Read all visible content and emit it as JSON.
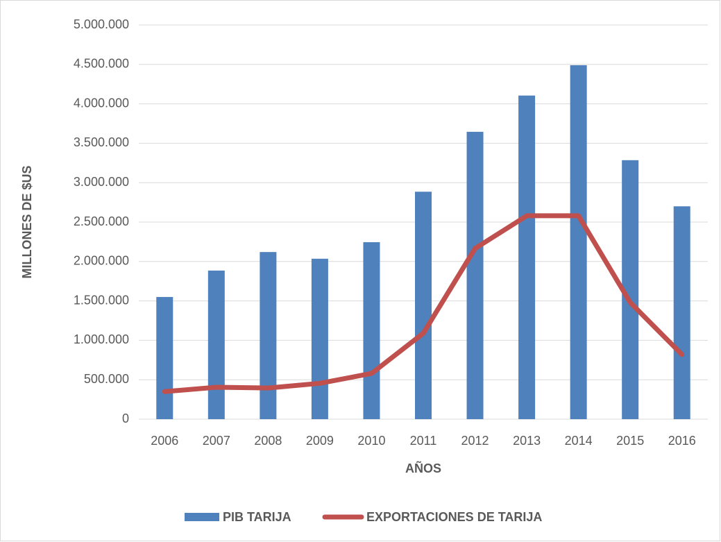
{
  "chart_data": {
    "type": "bar_line",
    "y_label": "MILLONES DE $US",
    "x_label": "AÑOS",
    "categories": [
      "2006",
      "2007",
      "2008",
      "2009",
      "2010",
      "2011",
      "2012",
      "2013",
      "2014",
      "2015",
      "2016"
    ],
    "series": [
      {
        "name": "PIB TARIJA",
        "type": "bar",
        "color": "#4f81bd",
        "values": [
          1550000,
          1885000,
          2120000,
          2035000,
          2245000,
          2885000,
          3645000,
          4105000,
          4490000,
          3285000,
          2700000
        ]
      },
      {
        "name": "EXPORTACIONES DE TARIJA",
        "type": "line",
        "color": "#c0504d",
        "values": [
          350000,
          405000,
          395000,
          455000,
          580000,
          1090000,
          2165000,
          2580000,
          2580000,
          1480000,
          820000
        ]
      }
    ],
    "ylim": [
      0,
      5000000
    ],
    "yticks": [
      0,
      {
        "value": 500000,
        "label": "500.000"
      },
      {
        "value": 1000000,
        "label": "1.000.000"
      },
      {
        "value": 1500000,
        "label": "1.500.000"
      },
      {
        "value": 2000000,
        "label": "2.000.000"
      },
      {
        "value": 2500000,
        "label": "2.500.000"
      },
      {
        "value": 3000000,
        "label": "3.000.000"
      },
      {
        "value": 3500000,
        "label": "3.500.000"
      },
      {
        "value": 4000000,
        "label": "4.000.000"
      },
      {
        "value": 4500000,
        "label": "4.500.000"
      },
      {
        "value": 5000000,
        "label": "5.000.000"
      }
    ],
    "grid": true,
    "legend": "bottom"
  }
}
